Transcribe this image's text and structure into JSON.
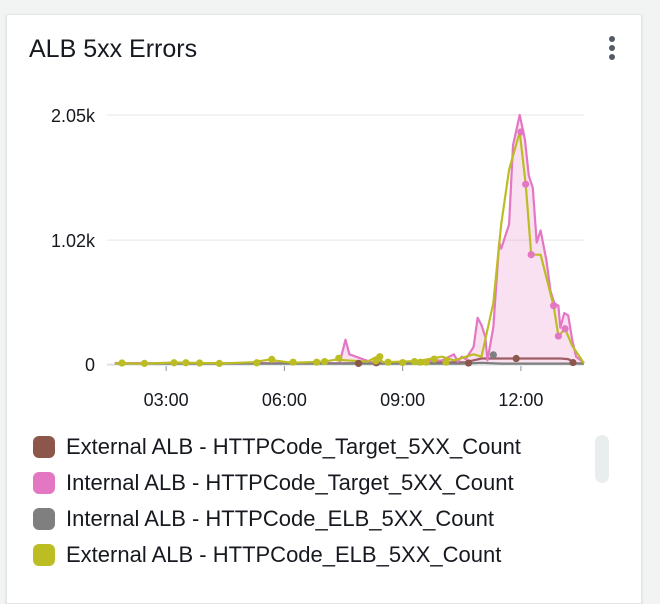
{
  "widget": {
    "title": "ALB 5xx Errors",
    "menu_icon": "more-vertical-icon"
  },
  "colors": {
    "grid": "#e6e6e6",
    "axis_text": "#16191f"
  },
  "chart_data": {
    "type": "line",
    "title": "ALB 5xx Errors",
    "x_unit": "time (HH:MM)",
    "x_range": [
      1.5,
      13.6
    ],
    "ylim": [
      0,
      2050
    ],
    "y_ticks": [
      {
        "value": 0,
        "label": "0"
      },
      {
        "value": 1020,
        "label": "1.02k"
      },
      {
        "value": 2050,
        "label": "2.05k"
      }
    ],
    "x_ticks": [
      {
        "value": 3,
        "label": "03:00"
      },
      {
        "value": 6,
        "label": "06:00"
      },
      {
        "value": 9,
        "label": "09:00"
      },
      {
        "value": 12,
        "label": "12:00"
      }
    ],
    "grid": true,
    "legend_position": "bottom",
    "series": [
      {
        "name": "External ALB - HTTPCode_Target_5XX_Count",
        "color": "#8c564b",
        "points": [
          [
            1.7,
            5
          ],
          [
            3,
            5
          ],
          [
            4.5,
            5
          ],
          [
            6,
            5
          ],
          [
            7.5,
            5
          ],
          [
            8.4,
            8
          ],
          [
            10.6,
            15
          ],
          [
            11,
            45
          ],
          [
            11.5,
            45
          ],
          [
            12,
            45
          ],
          [
            12.5,
            45
          ],
          [
            13,
            45
          ],
          [
            13.2,
            40
          ],
          [
            13.4,
            5
          ],
          [
            13.6,
            5
          ]
        ],
        "markers": [
          [
            7.88,
            5
          ],
          [
            8.33,
            10
          ],
          [
            10.67,
            8
          ],
          [
            11.88,
            45
          ],
          [
            13.32,
            12
          ]
        ]
      },
      {
        "name": "Internal ALB - HTTPCode_Target_5XX_Count",
        "color": "#e377c2",
        "area": true,
        "points": [
          [
            1.7,
            8
          ],
          [
            2.5,
            6
          ],
          [
            3.5,
            8
          ],
          [
            4.5,
            6
          ],
          [
            5.5,
            8
          ],
          [
            6.5,
            6
          ],
          [
            7.4,
            8
          ],
          [
            7.55,
            200
          ],
          [
            7.65,
            80
          ],
          [
            8.2,
            15
          ],
          [
            9,
            10
          ],
          [
            10,
            30
          ],
          [
            10.3,
            80
          ],
          [
            10.4,
            20
          ],
          [
            10.5,
            60
          ],
          [
            10.6,
            40
          ],
          [
            10.8,
            140
          ],
          [
            10.9,
            380
          ],
          [
            11.0,
            320
          ],
          [
            11.1,
            220
          ],
          [
            11.15,
            30
          ],
          [
            11.3,
            300
          ],
          [
            11.45,
            1000
          ],
          [
            11.5,
            950
          ],
          [
            11.7,
            1150
          ],
          [
            11.8,
            1800
          ],
          [
            11.97,
            2050
          ],
          [
            12.1,
            1850
          ],
          [
            12.2,
            1550
          ],
          [
            12.3,
            1450
          ],
          [
            12.4,
            1000
          ],
          [
            12.5,
            1100
          ],
          [
            12.65,
            850
          ],
          [
            12.75,
            600
          ],
          [
            12.85,
            500
          ],
          [
            12.95,
            480
          ],
          [
            13.0,
            300
          ],
          [
            13.1,
            420
          ],
          [
            13.2,
            400
          ],
          [
            13.3,
            200
          ],
          [
            13.4,
            60
          ],
          [
            13.6,
            8
          ]
        ],
        "markers": [
          [
            12.0,
            1910
          ],
          [
            12.12,
            1480
          ],
          [
            12.26,
            900
          ],
          [
            12.83,
            480
          ],
          [
            12.95,
            230
          ],
          [
            13.12,
            290
          ]
        ]
      },
      {
        "name": "Internal ALB - HTTPCode_ELB_5XX_Count",
        "color": "#7f7f7f",
        "points": [
          [
            1.7,
            3
          ],
          [
            5,
            3
          ],
          [
            8,
            3
          ],
          [
            10.5,
            3
          ],
          [
            11,
            10
          ],
          [
            11.5,
            3
          ],
          [
            12.5,
            3
          ],
          [
            13.6,
            3
          ]
        ],
        "markers": [
          [
            11.3,
            75
          ]
        ]
      },
      {
        "name": "External ALB - HTTPCode_ELB_5XX_Count",
        "color": "#bcbd22",
        "points": [
          [
            1.7,
            5
          ],
          [
            2.5,
            3
          ],
          [
            3.2,
            12
          ],
          [
            3.6,
            10
          ],
          [
            4.5,
            6
          ],
          [
            5.2,
            15
          ],
          [
            5.6,
            35
          ],
          [
            6.2,
            10
          ],
          [
            7.0,
            20
          ],
          [
            7.3,
            35
          ],
          [
            8.1,
            20
          ],
          [
            8.35,
            60
          ],
          [
            8.5,
            15
          ],
          [
            9,
            20
          ],
          [
            9.4,
            25
          ],
          [
            10,
            60
          ],
          [
            10.3,
            30
          ],
          [
            10.8,
            80
          ],
          [
            11.0,
            60
          ],
          [
            11.3,
            500
          ],
          [
            11.5,
            1150
          ],
          [
            11.7,
            1600
          ],
          [
            11.97,
            1910
          ],
          [
            12.12,
            1480
          ],
          [
            12.26,
            900
          ],
          [
            12.5,
            900
          ],
          [
            12.83,
            480
          ],
          [
            12.95,
            230
          ],
          [
            13.12,
            290
          ],
          [
            13.3,
            150
          ],
          [
            13.6,
            5
          ]
        ],
        "markers": [
          [
            1.88,
            8
          ],
          [
            2.45,
            5
          ],
          [
            3.2,
            10
          ],
          [
            3.5,
            10
          ],
          [
            3.85,
            8
          ],
          [
            4.35,
            5
          ],
          [
            5.3,
            10
          ],
          [
            5.68,
            38
          ],
          [
            6.22,
            15
          ],
          [
            6.82,
            15
          ],
          [
            7.02,
            20
          ],
          [
            7.38,
            48
          ],
          [
            8.32,
            25
          ],
          [
            8.42,
            60
          ],
          [
            8.63,
            15
          ],
          [
            9.0,
            12
          ],
          [
            9.3,
            20
          ],
          [
            9.45,
            15
          ],
          [
            9.6,
            15
          ],
          [
            9.8,
            40
          ],
          [
            10.1,
            15
          ]
        ]
      }
    ]
  },
  "legend": {
    "items": [
      {
        "label": "External ALB - HTTPCode_Target_5XX_Count",
        "color": "#8c564b"
      },
      {
        "label": "Internal ALB - HTTPCode_Target_5XX_Count",
        "color": "#e377c2"
      },
      {
        "label": "Internal ALB - HTTPCode_ELB_5XX_Count",
        "color": "#7f7f7f"
      },
      {
        "label": "External ALB - HTTPCode_ELB_5XX_Count",
        "color": "#bcbd22"
      }
    ]
  }
}
